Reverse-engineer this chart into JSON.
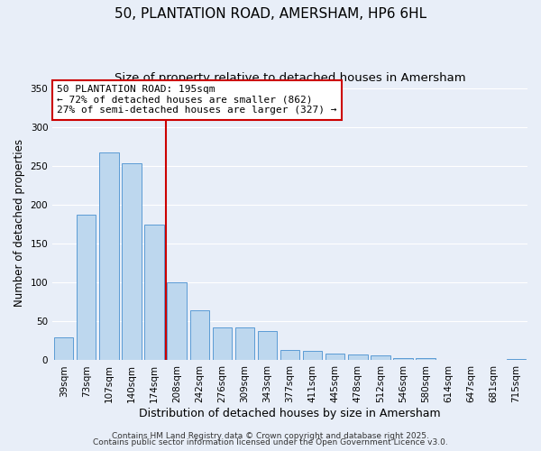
{
  "title": "50, PLANTATION ROAD, AMERSHAM, HP6 6HL",
  "subtitle": "Size of property relative to detached houses in Amersham",
  "xlabel": "Distribution of detached houses by size in Amersham",
  "ylabel": "Number of detached properties",
  "categories": [
    "39sqm",
    "73sqm",
    "107sqm",
    "140sqm",
    "174sqm",
    "208sqm",
    "242sqm",
    "276sqm",
    "309sqm",
    "343sqm",
    "377sqm",
    "411sqm",
    "445sqm",
    "478sqm",
    "512sqm",
    "546sqm",
    "580sqm",
    "614sqm",
    "647sqm",
    "681sqm",
    "715sqm"
  ],
  "values": [
    30,
    188,
    268,
    254,
    175,
    100,
    65,
    42,
    42,
    38,
    13,
    12,
    9,
    8,
    6,
    3,
    3,
    1,
    0,
    0,
    2
  ],
  "bar_color": "#bdd7ee",
  "bar_edge_color": "#5b9bd5",
  "background_color": "#e8eef8",
  "grid_color": "#ffffff",
  "vline_x": 4.5,
  "vline_color": "#cc0000",
  "annotation_text": "50 PLANTATION ROAD: 195sqm\n← 72% of detached houses are smaller (862)\n27% of semi-detached houses are larger (327) →",
  "annotation_box_color": "#ffffff",
  "annotation_box_edge_color": "#cc0000",
  "ylim": [
    0,
    355
  ],
  "yticks": [
    0,
    50,
    100,
    150,
    200,
    250,
    300,
    350
  ],
  "footer1": "Contains HM Land Registry data © Crown copyright and database right 2025.",
  "footer2": "Contains public sector information licensed under the Open Government Licence v3.0.",
  "title_fontsize": 11,
  "subtitle_fontsize": 9.5,
  "xlabel_fontsize": 9,
  "ylabel_fontsize": 8.5,
  "tick_fontsize": 7.5,
  "annotation_fontsize": 8,
  "footer_fontsize": 6.5
}
